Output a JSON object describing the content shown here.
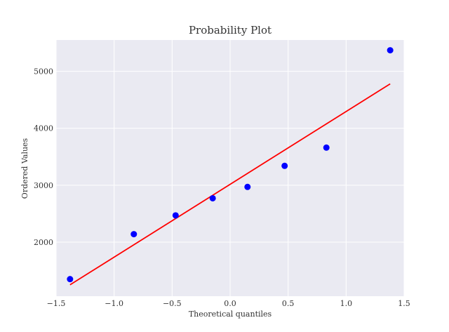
{
  "chart_data": {
    "type": "scatter",
    "title": "Probability Plot",
    "xlabel": "Theoretical quantiles",
    "ylabel": "Ordered Values",
    "xlim": [
      -1.5,
      1.5
    ],
    "ylim": [
      1050,
      5550
    ],
    "xticks": [
      -1.5,
      -1.0,
      -0.5,
      0.0,
      0.5,
      1.0,
      1.5
    ],
    "xtick_labels": [
      "−1.5",
      "−1.0",
      "−0.5",
      "0.0",
      "0.5",
      "1.0",
      "1.5"
    ],
    "yticks": [
      2000,
      3000,
      4000,
      5000
    ],
    "ytick_labels": [
      "2000",
      "3000",
      "4000",
      "5000"
    ],
    "grid": true,
    "background": "#eaeaf2",
    "points": {
      "color": "#0000ff",
      "x": [
        -1.38,
        -0.83,
        -0.47,
        -0.15,
        0.15,
        0.47,
        0.83,
        1.38
      ],
      "y": [
        1350,
        2140,
        2470,
        2770,
        2970,
        3340,
        3660,
        5370
      ]
    },
    "fit_line": {
      "color": "#ff0000",
      "x": [
        -1.38,
        1.38
      ],
      "y": [
        1250,
        4780
      ]
    }
  }
}
